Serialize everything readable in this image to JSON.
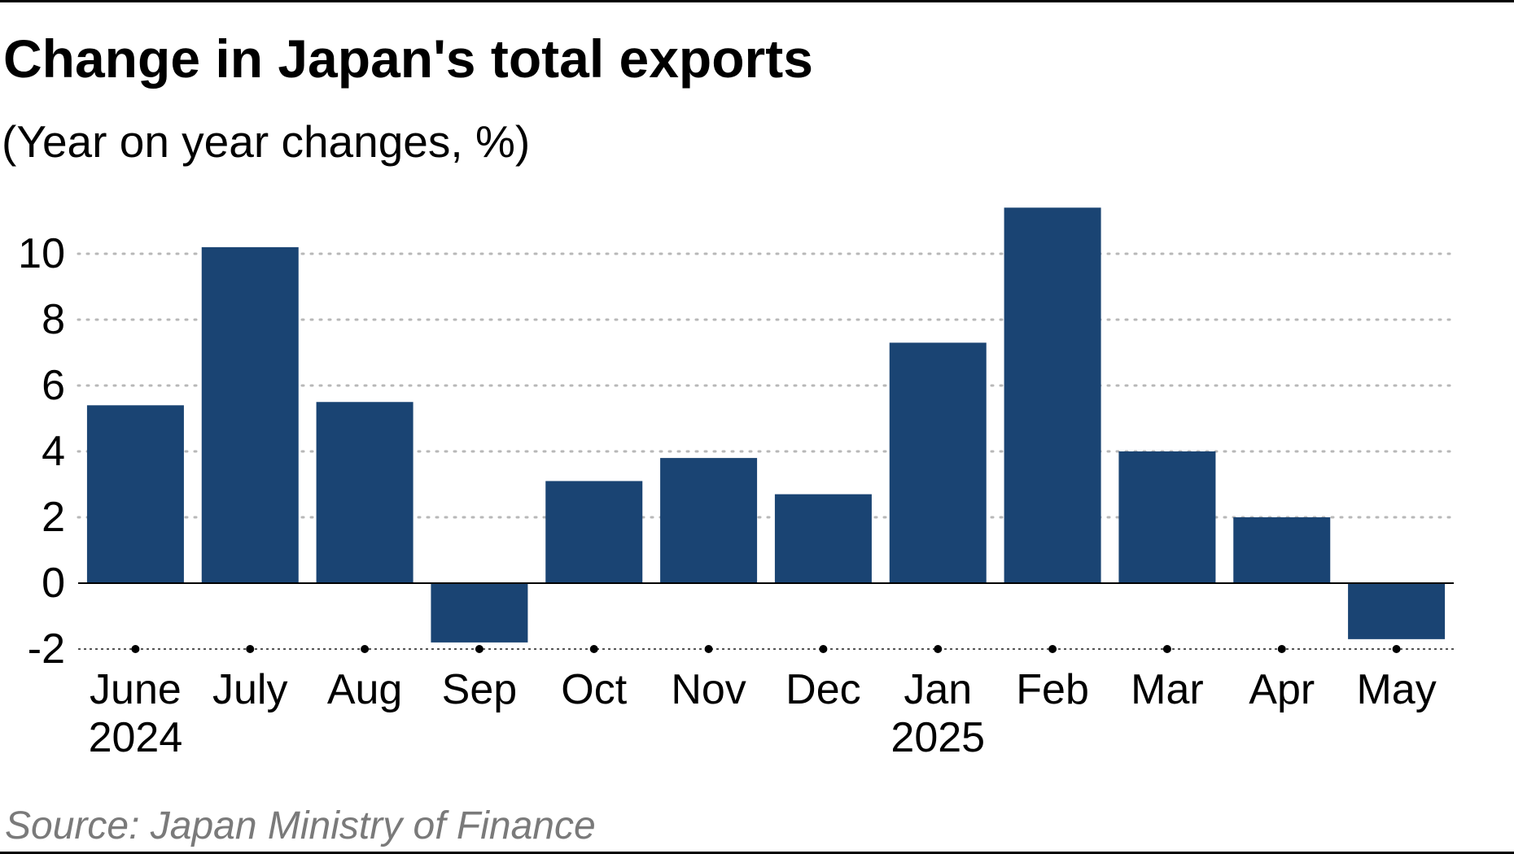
{
  "colors": {
    "bar": "#1a4473",
    "grid": "#b8b8b8",
    "axis": "#000000",
    "source": "#7a7a7a"
  },
  "source": "Source: Japan Ministry of Finance",
  "chart_data": {
    "type": "bar",
    "title": "Change in Japan's total exports",
    "subtitle": "(Year on year changes, %)",
    "xlabel": "",
    "ylabel": "",
    "categories": [
      "June",
      "July",
      "Aug",
      "Sep",
      "Oct",
      "Nov",
      "Dec",
      "Jan",
      "Feb",
      "Mar",
      "Apr",
      "May"
    ],
    "year_labels": [
      "2024",
      "",
      "",
      "",
      "",
      "",
      "",
      "2025",
      "",
      "",
      "",
      ""
    ],
    "values": [
      5.4,
      10.2,
      5.5,
      -1.8,
      3.1,
      3.8,
      2.7,
      7.3,
      11.4,
      4.0,
      2.0,
      -1.7
    ],
    "ylim": [
      -2,
      12
    ],
    "yticks": [
      -2,
      0,
      2,
      4,
      6,
      8,
      10
    ],
    "grid": true,
    "legend": "none"
  }
}
